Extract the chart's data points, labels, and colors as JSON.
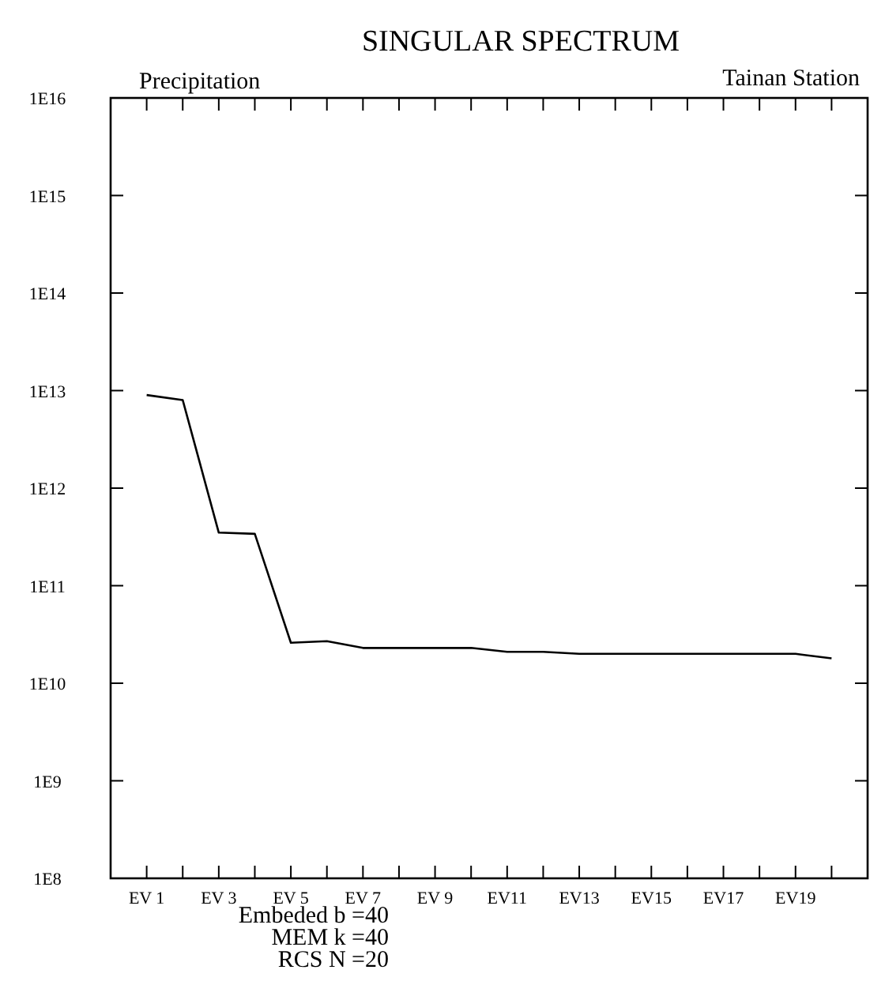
{
  "chart_data": {
    "type": "line",
    "title": "SINGULAR SPECTRUM",
    "annotations": [
      "Precipitation",
      "Tainan Station",
      "Embeded b =40",
      "MEM k =40",
      "RCS N =20"
    ],
    "categories": [
      "EV 1",
      null,
      "EV 3",
      null,
      "EV 5",
      null,
      "EV 7",
      null,
      "EV 9",
      null,
      "EV11",
      null,
      "EV13",
      null,
      "EV15",
      null,
      "EV17",
      null,
      "EV19",
      null
    ],
    "series": [
      {
        "color": "#000000",
        "values": [
          9000000000000.0,
          8000000000000.0,
          350000000000.0,
          340000000000.0,
          26000000000.0,
          27000000000.0,
          23000000000.0,
          23000000000.0,
          23000000000.0,
          23000000000.0,
          21000000000.0,
          21000000000.0,
          20000000000.0,
          20000000000.0,
          20000000000.0,
          20000000000.0,
          20000000000.0,
          20000000000.0,
          20000000000.0,
          18000000000.0
        ]
      }
    ],
    "ylim": [
      100000000.0,
      1e+16
    ],
    "yticks": [
      {
        "value": 100000000.0,
        "label": "1E8"
      },
      {
        "value": 1000000000.0,
        "label": "1E9"
      },
      {
        "value": 10000000000.0,
        "label": "1E10"
      },
      {
        "value": 100000000000.0,
        "label": "1E11"
      },
      {
        "value": 1000000000000.0,
        "label": "1E12"
      },
      {
        "value": 10000000000000.0,
        "label": "1E13"
      },
      {
        "value": 100000000000000.0,
        "label": "1E14"
      },
      {
        "value": 1000000000000000.0,
        "label": "1E15"
      },
      {
        "value": 1e+16,
        "label": "1E16"
      }
    ],
    "log": "y",
    "grid": false,
    "marker": "none",
    "line_style": "solid"
  }
}
